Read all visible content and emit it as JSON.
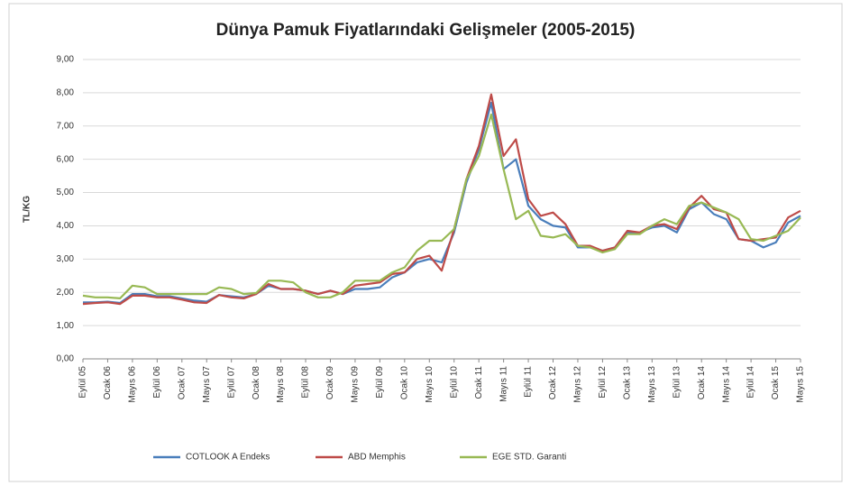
{
  "chart_data": {
    "type": "line",
    "title": "Dünya Pamuk Fiyatlarındaki Gelişmeler (2005-2015)",
    "y_label": "TL/KG",
    "categories": [
      "Eylül 05",
      null,
      "Ocak 06",
      null,
      "Mayıs 06",
      null,
      "Eylül 06",
      null,
      "Ocak 07",
      null,
      "Mayıs 07",
      null,
      "Eylül 07",
      null,
      "Ocak 08",
      null,
      "Mayıs 08",
      null,
      "Eylül 08",
      null,
      "Ocak 09",
      null,
      "Mayıs 09",
      null,
      "Eylül 09",
      null,
      "Ocak 10",
      null,
      "Mayıs 10",
      null,
      "Eylül 10",
      null,
      "Ocak 11",
      null,
      "Mayıs 11",
      null,
      "Eylül 11",
      null,
      "Ocak 12",
      null,
      "Mayıs 12",
      null,
      "Eylül 12",
      null,
      "Ocak 13",
      null,
      "Mayıs 13",
      null,
      "Eylül 13",
      null,
      "Ocak 14",
      null,
      "Mayıs 14",
      null,
      "Eylül 14",
      null,
      "Ocak 15",
      null,
      "Mayıs 15"
    ],
    "series": [
      {
        "name": "COTLOOK A Endeks",
        "color": "#4a7ebb",
        "values": [
          1.7,
          1.7,
          1.72,
          1.68,
          1.95,
          1.95,
          1.88,
          1.88,
          1.82,
          1.75,
          1.72,
          1.92,
          1.88,
          1.85,
          1.95,
          2.2,
          2.1,
          2.1,
          2.05,
          1.95,
          2.05,
          1.95,
          2.1,
          2.1,
          2.15,
          2.45,
          2.6,
          2.9,
          3.0,
          2.9,
          3.8,
          5.3,
          6.3,
          7.7,
          5.7,
          6.0,
          4.6,
          4.2,
          4.0,
          3.95,
          3.35,
          3.35,
          3.25,
          3.35,
          3.8,
          3.8,
          3.95,
          4.0,
          3.8,
          4.5,
          4.7,
          4.35,
          4.2,
          3.6,
          3.55,
          3.35,
          3.5,
          4.1,
          4.3
        ]
      },
      {
        "name": "ABD Memphis",
        "color": "#be4b48",
        "values": [
          1.65,
          1.68,
          1.7,
          1.65,
          1.9,
          1.9,
          1.85,
          1.85,
          1.78,
          1.7,
          1.68,
          1.92,
          1.85,
          1.82,
          1.95,
          2.25,
          2.1,
          2.1,
          2.05,
          1.95,
          2.05,
          1.95,
          2.2,
          2.25,
          2.3,
          2.55,
          2.6,
          3.0,
          3.1,
          2.65,
          3.9,
          5.4,
          6.4,
          7.95,
          6.1,
          6.6,
          4.8,
          4.3,
          4.4,
          4.05,
          3.4,
          3.4,
          3.25,
          3.35,
          3.85,
          3.8,
          4.0,
          4.05,
          3.9,
          4.55,
          4.9,
          4.5,
          4.4,
          3.6,
          3.55,
          3.6,
          3.65,
          4.25,
          4.45
        ]
      },
      {
        "name": "EGE  STD. Garanti",
        "color": "#98b954",
        "values": [
          1.9,
          1.85,
          1.85,
          1.82,
          2.2,
          2.15,
          1.95,
          1.95,
          1.95,
          1.95,
          1.95,
          2.15,
          2.1,
          1.95,
          1.98,
          2.35,
          2.35,
          2.3,
          2.0,
          1.85,
          1.85,
          2.0,
          2.35,
          2.35,
          2.35,
          2.6,
          2.75,
          3.25,
          3.55,
          3.55,
          3.9,
          5.4,
          6.1,
          7.35,
          5.7,
          4.2,
          4.45,
          3.7,
          3.65,
          3.75,
          3.4,
          3.35,
          3.2,
          3.3,
          3.75,
          3.75,
          4.0,
          4.2,
          4.05,
          4.6,
          4.7,
          4.55,
          4.4,
          4.2,
          3.6,
          3.55,
          3.7,
          3.85,
          4.25
        ]
      }
    ],
    "ylim": [
      0,
      9
    ],
    "yticks": [
      {
        "value": 0,
        "label": "0,00"
      },
      {
        "value": 1,
        "label": "1,00"
      },
      {
        "value": 2,
        "label": "2,00"
      },
      {
        "value": 3,
        "label": "3,00"
      },
      {
        "value": 4,
        "label": "4,00"
      },
      {
        "value": 5,
        "label": "5,00"
      },
      {
        "value": 6,
        "label": "6,00"
      },
      {
        "value": 7,
        "label": "7,00"
      },
      {
        "value": 8,
        "label": "8,00"
      },
      {
        "value": 9,
        "label": "9,00"
      }
    ],
    "grid": true,
    "legend": "bottom"
  }
}
